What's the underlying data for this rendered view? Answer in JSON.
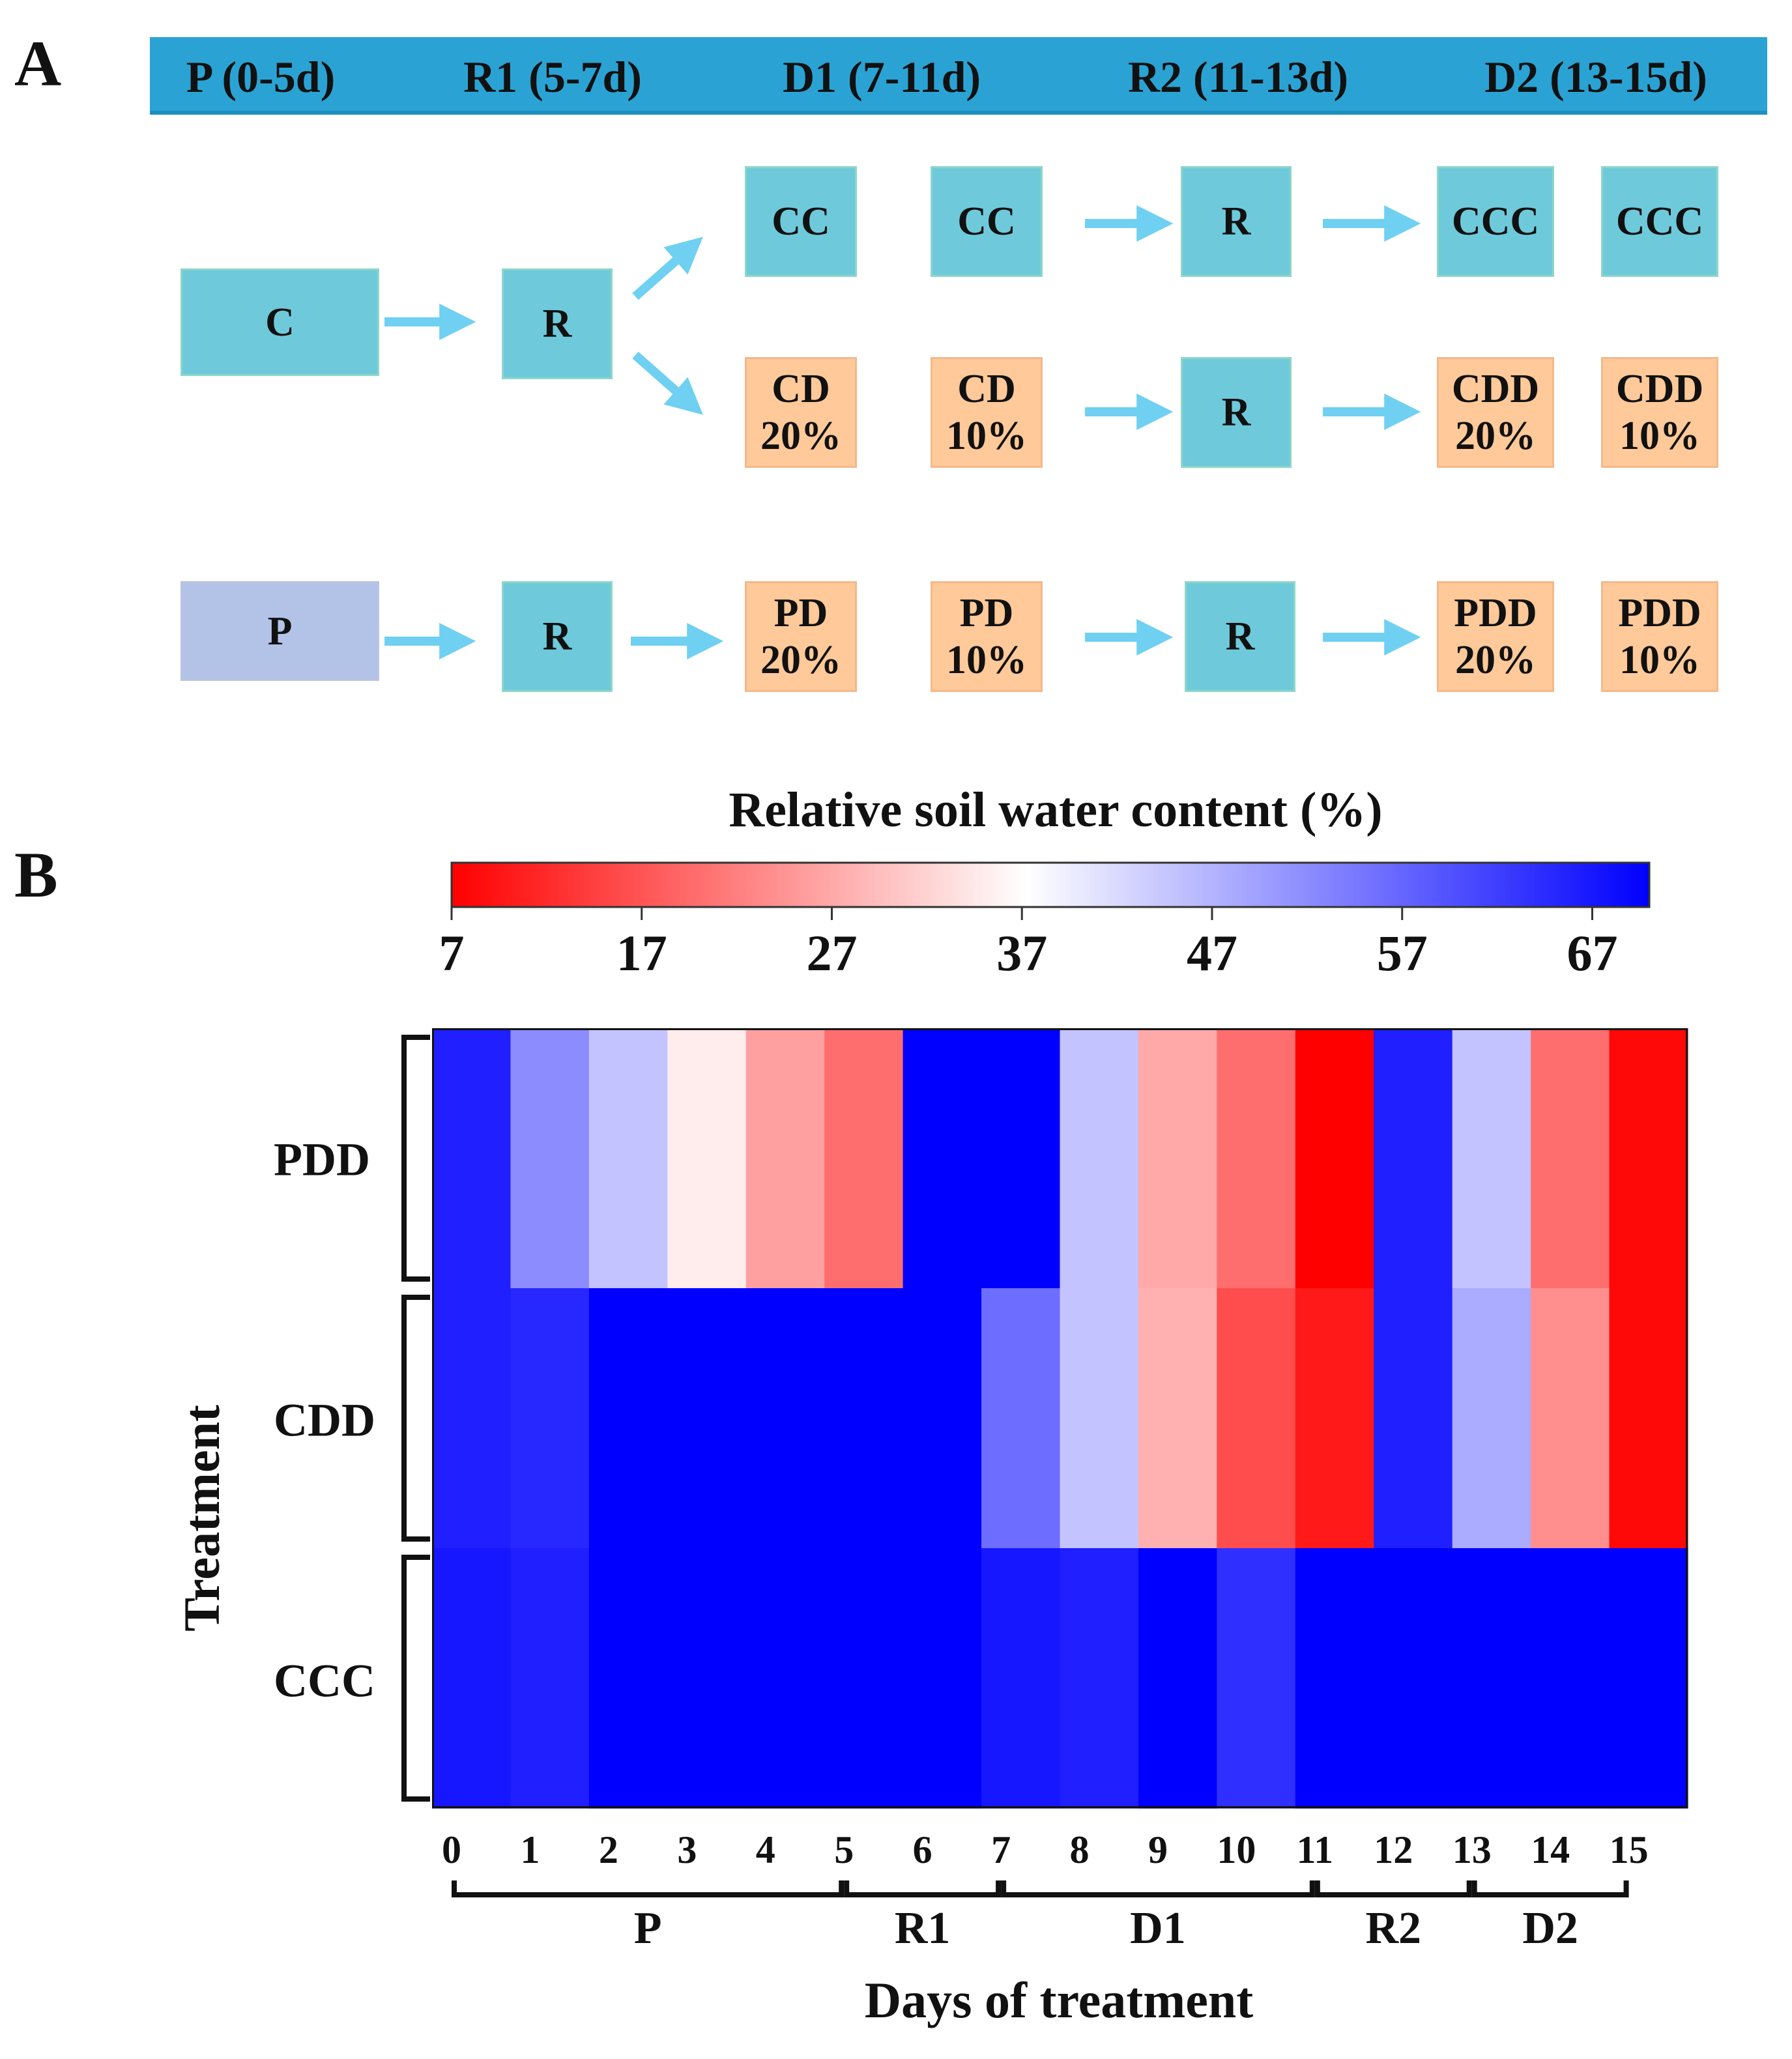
{
  "panel_a": {
    "letter": "A",
    "phases": [
      "P (0-5d)",
      "R1 (5-7d)",
      "D1 (7-11d)",
      "R2 (11-13d)",
      "D2 (13-15d)"
    ],
    "boxes": {
      "c_start": [
        "C"
      ],
      "c_rewater": [
        "R"
      ],
      "cc_1": [
        "CC"
      ],
      "cc_2": [
        "CC"
      ],
      "cc_r2": [
        "R"
      ],
      "ccc_1": [
        "CCC"
      ],
      "ccc_2": [
        "CCC"
      ],
      "cd_20": [
        "CD",
        "20%"
      ],
      "cd_10": [
        "CD",
        "10%"
      ],
      "cd_r2": [
        "R"
      ],
      "cdd_20": [
        "CDD",
        "20%"
      ],
      "cdd_10": [
        "CDD",
        "10%"
      ],
      "p_start": [
        "P"
      ],
      "p_rewater": [
        "R"
      ],
      "pd_20": [
        "PD",
        "20%"
      ],
      "pd_10": [
        "PD",
        "10%"
      ],
      "pd_r2": [
        "R"
      ],
      "pdd_20": [
        "PDD",
        "20%"
      ],
      "pdd_10": [
        "PDD",
        "10%"
      ]
    },
    "colors": {
      "teal": "#6ecadb",
      "orange": "#ffc999",
      "lavender": "#b3c3e8",
      "arrow": "#6fd0f2",
      "bar": "#2aa3d4"
    }
  },
  "panel_b": {
    "letter": "B"
  },
  "chart_data": {
    "type": "heatmap",
    "title": "Relative soil water content (%)",
    "colorbar": {
      "ticks": [
        7,
        17,
        27,
        37,
        47,
        57,
        67
      ],
      "range": [
        7,
        70
      ],
      "colors": [
        "#ff0000",
        "#ffffff",
        "#0000ff"
      ]
    },
    "ylabel": "Treatment",
    "xlabel": "Days of treatment",
    "rows": [
      "PDD",
      "CDD",
      "CCC"
    ],
    "x_ticks": [
      "0",
      "1",
      "2",
      "3",
      "4",
      "5",
      "6",
      "7",
      "8",
      "9",
      "10",
      "11",
      "12",
      "13",
      "14",
      "15"
    ],
    "phases": [
      {
        "label": "P",
        "from": 0,
        "to": 5
      },
      {
        "label": "R1",
        "from": 5,
        "to": 7
      },
      {
        "label": "D1",
        "from": 7,
        "to": 11
      },
      {
        "label": "R2",
        "from": 11,
        "to": 13
      },
      {
        "label": "D2",
        "from": 13,
        "to": 15
      }
    ],
    "values": [
      [
        66,
        52,
        45,
        35,
        26,
        20,
        70,
        70,
        45,
        27,
        20,
        7,
        66,
        45,
        20,
        8
      ],
      [
        66,
        65,
        70,
        70,
        70,
        70,
        70,
        56,
        45,
        28,
        16,
        10,
        66,
        48,
        24,
        8
      ],
      [
        67,
        66,
        70,
        70,
        70,
        70,
        70,
        67,
        66,
        70,
        64,
        70,
        70,
        70,
        70,
        70
      ]
    ]
  }
}
